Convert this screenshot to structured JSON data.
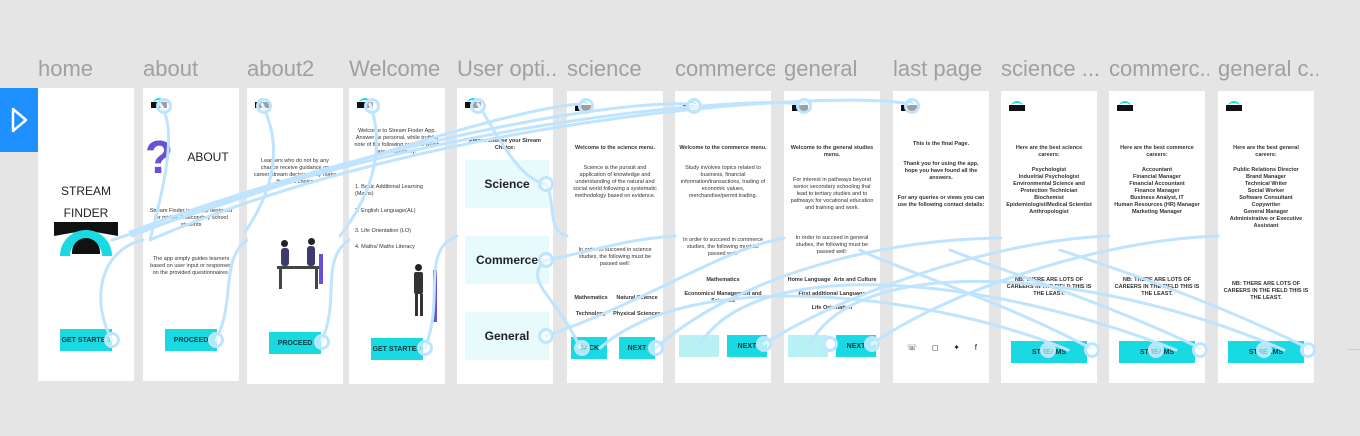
{
  "toolbar": {
    "play_icon": "play-icon"
  },
  "frames": [
    {
      "id": "home",
      "label": "home"
    },
    {
      "id": "about",
      "label": "about"
    },
    {
      "id": "about2",
      "label": "about2"
    },
    {
      "id": "welcome",
      "label": "Welcome"
    },
    {
      "id": "user-options",
      "label": "User opti..."
    },
    {
      "id": "science",
      "label": "science"
    },
    {
      "id": "commerce",
      "label": "commerce"
    },
    {
      "id": "general",
      "label": "general"
    },
    {
      "id": "last-page",
      "label": "last page"
    },
    {
      "id": "science-careers",
      "label": "science ..."
    },
    {
      "id": "commerce-careers",
      "label": "commerc..."
    },
    {
      "id": "general-careers",
      "label": "general c..."
    }
  ],
  "home": {
    "title_line1": "STREAM",
    "title_line2": "FINDER",
    "button": "GET STARTED"
  },
  "about": {
    "heading": "ABOUT",
    "body1": "Stream Finder is an app designed for middle & secondary school students",
    "body2": "The app simply guides learners based on user input or responses on the provided questionnaires.",
    "button": "PROCEED"
  },
  "about2": {
    "body": "Learners who do not by any chance receive guidance on career stream decision may make the right choice",
    "button": "PROCEED"
  },
  "welcome": {
    "body": "Welcome to Stream Finder App. Answer as personal, while truthful note of the following courses which are compulsory:",
    "items": [
      "1. Basic Additional Learning (Maths)",
      "2. English Language(AL)",
      "3. Life Orientation (LO)",
      "4. Maths/ Maths Literacy"
    ],
    "button": "GET STARTED"
  },
  "user_options": {
    "prompt": "Please choose your Stream Choice:",
    "options": [
      "Science",
      "Commerce",
      "General"
    ]
  },
  "science": {
    "heading": "Welcome to the science menu.",
    "body": "Science is the pursuit and application of knowledge and understanding of the natural and social world following a systematic methodology based on evidence.",
    "body2": "In order to succeed in science studies, the following must be passed well:",
    "subjects": [
      "Mathematics",
      "Natural Science",
      "Technology",
      "Physical Sciences"
    ],
    "back": "BACK",
    "next": "NEXT"
  },
  "commerce": {
    "heading": "Welcome to the commerce menu.",
    "body": "Study involves topics related to business, financial information/transactions, trading of economic values, merchandise/permit trading.",
    "body2": "In order to succeed in commerce studies, the following must be passed well:",
    "subjects": [
      "Mathematics",
      "Economics/ Management and Sciences"
    ],
    "next": "NEXT"
  },
  "general": {
    "heading": "Welcome to the general studies menu.",
    "body": "For interest in pathways beyond senior secondary schooling that lead to tertiary studies and to pathways for vocational education and training and work.",
    "body2": "In order to succeed in general studies, the following must be passed well:",
    "subjects": [
      "Home Language",
      "Arts and Culture",
      "First additional Language",
      "Life Orientation"
    ],
    "next": "NEXT"
  },
  "last_page": {
    "line1": "This is the final Page.",
    "line2": "Thank you for using the app, hope you have found all the answers.",
    "line3": "For any queries or views you can use the following contact details:"
  },
  "science_careers": {
    "heading": "Here are the best science careers:",
    "careers": [
      "Psychologist",
      "Industrial Psychologist",
      "Environmental Science and Protection Technician",
      "Biochemist",
      "Epidemiologist/Medical Scientist",
      "Anthropologist"
    ],
    "note": "NB: THERE ARE LOTS OF CAREERS IN THE FIELD THIS IS THE LEAST.",
    "button": "STREAMS"
  },
  "commerce_careers": {
    "heading": "Here are the best commerce careers:",
    "careers": [
      "Accountant",
      "Financial Manager",
      "Financial Accountant",
      "Finance Manager",
      "Business Analyst, IT",
      "Human Resources (HR) Manager",
      "Marketing Manager"
    ],
    "note": "NB: THERE ARE LOTS OF CAREERS IN THE FIELD THIS IS THE LEAST.",
    "button": "STREAMS"
  },
  "general_careers": {
    "heading": "Here are the best general careers:",
    "careers": [
      "Public Relations Director",
      "Brand Manager",
      "Technical Writer",
      "Social Worker",
      "Software Consultant",
      "Copywriter",
      "General Manager",
      "Administrative or Executive Assistant"
    ],
    "note": "NB: THERE ARE LOTS OF CAREERS IN THE FIELD THIS IS THE LEAST.",
    "button": "STREAMS"
  },
  "colors": {
    "accent": "#19d9e3",
    "link": "#bfe4ff",
    "play": "#1e90ff"
  }
}
